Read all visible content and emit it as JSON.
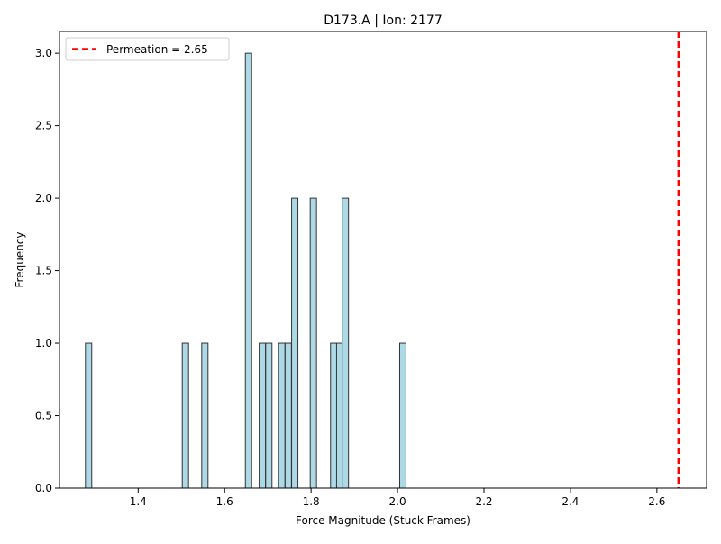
{
  "chart_data": {
    "type": "bar",
    "title": "D173.A | Ion: 2177",
    "xlabel": "Force Magnitude (Stuck Frames)",
    "ylabel": "Frequency",
    "xlim": [
      1.218,
      2.715
    ],
    "ylim": [
      0.0,
      3.15
    ],
    "xticks": [
      1.4,
      1.6,
      1.8,
      2.0,
      2.2,
      2.4,
      2.6
    ],
    "xtick_labels": [
      "1.4",
      "1.6",
      "1.8",
      "2.0",
      "2.2",
      "2.4",
      "2.6"
    ],
    "yticks": [
      0.0,
      0.5,
      1.0,
      1.5,
      2.0,
      2.5,
      3.0
    ],
    "ytick_labels": [
      "0.0",
      "0.5",
      "1.0",
      "1.5",
      "2.0",
      "2.5",
      "3.0"
    ],
    "bin_width": 0.0146,
    "bins": [
      {
        "x0": 1.278,
        "count": 1
      },
      {
        "x0": 1.502,
        "count": 1
      },
      {
        "x0": 1.547,
        "count": 1
      },
      {
        "x0": 1.648,
        "count": 3
      },
      {
        "x0": 1.68,
        "count": 1
      },
      {
        "x0": 1.695,
        "count": 1
      },
      {
        "x0": 1.725,
        "count": 1
      },
      {
        "x0": 1.74,
        "count": 1
      },
      {
        "x0": 1.755,
        "count": 2
      },
      {
        "x0": 1.798,
        "count": 2
      },
      {
        "x0": 1.845,
        "count": 1
      },
      {
        "x0": 1.859,
        "count": 1
      },
      {
        "x0": 1.872,
        "count": 2
      },
      {
        "x0": 2.005,
        "count": 1
      }
    ],
    "bar_color": "#add8e6",
    "bar_edge_color": "#333333",
    "reference_line": {
      "x": 2.65,
      "color": "#ff0000",
      "label": "Permeation = 2.65"
    },
    "legend_position": "upper-left",
    "grid": false
  }
}
